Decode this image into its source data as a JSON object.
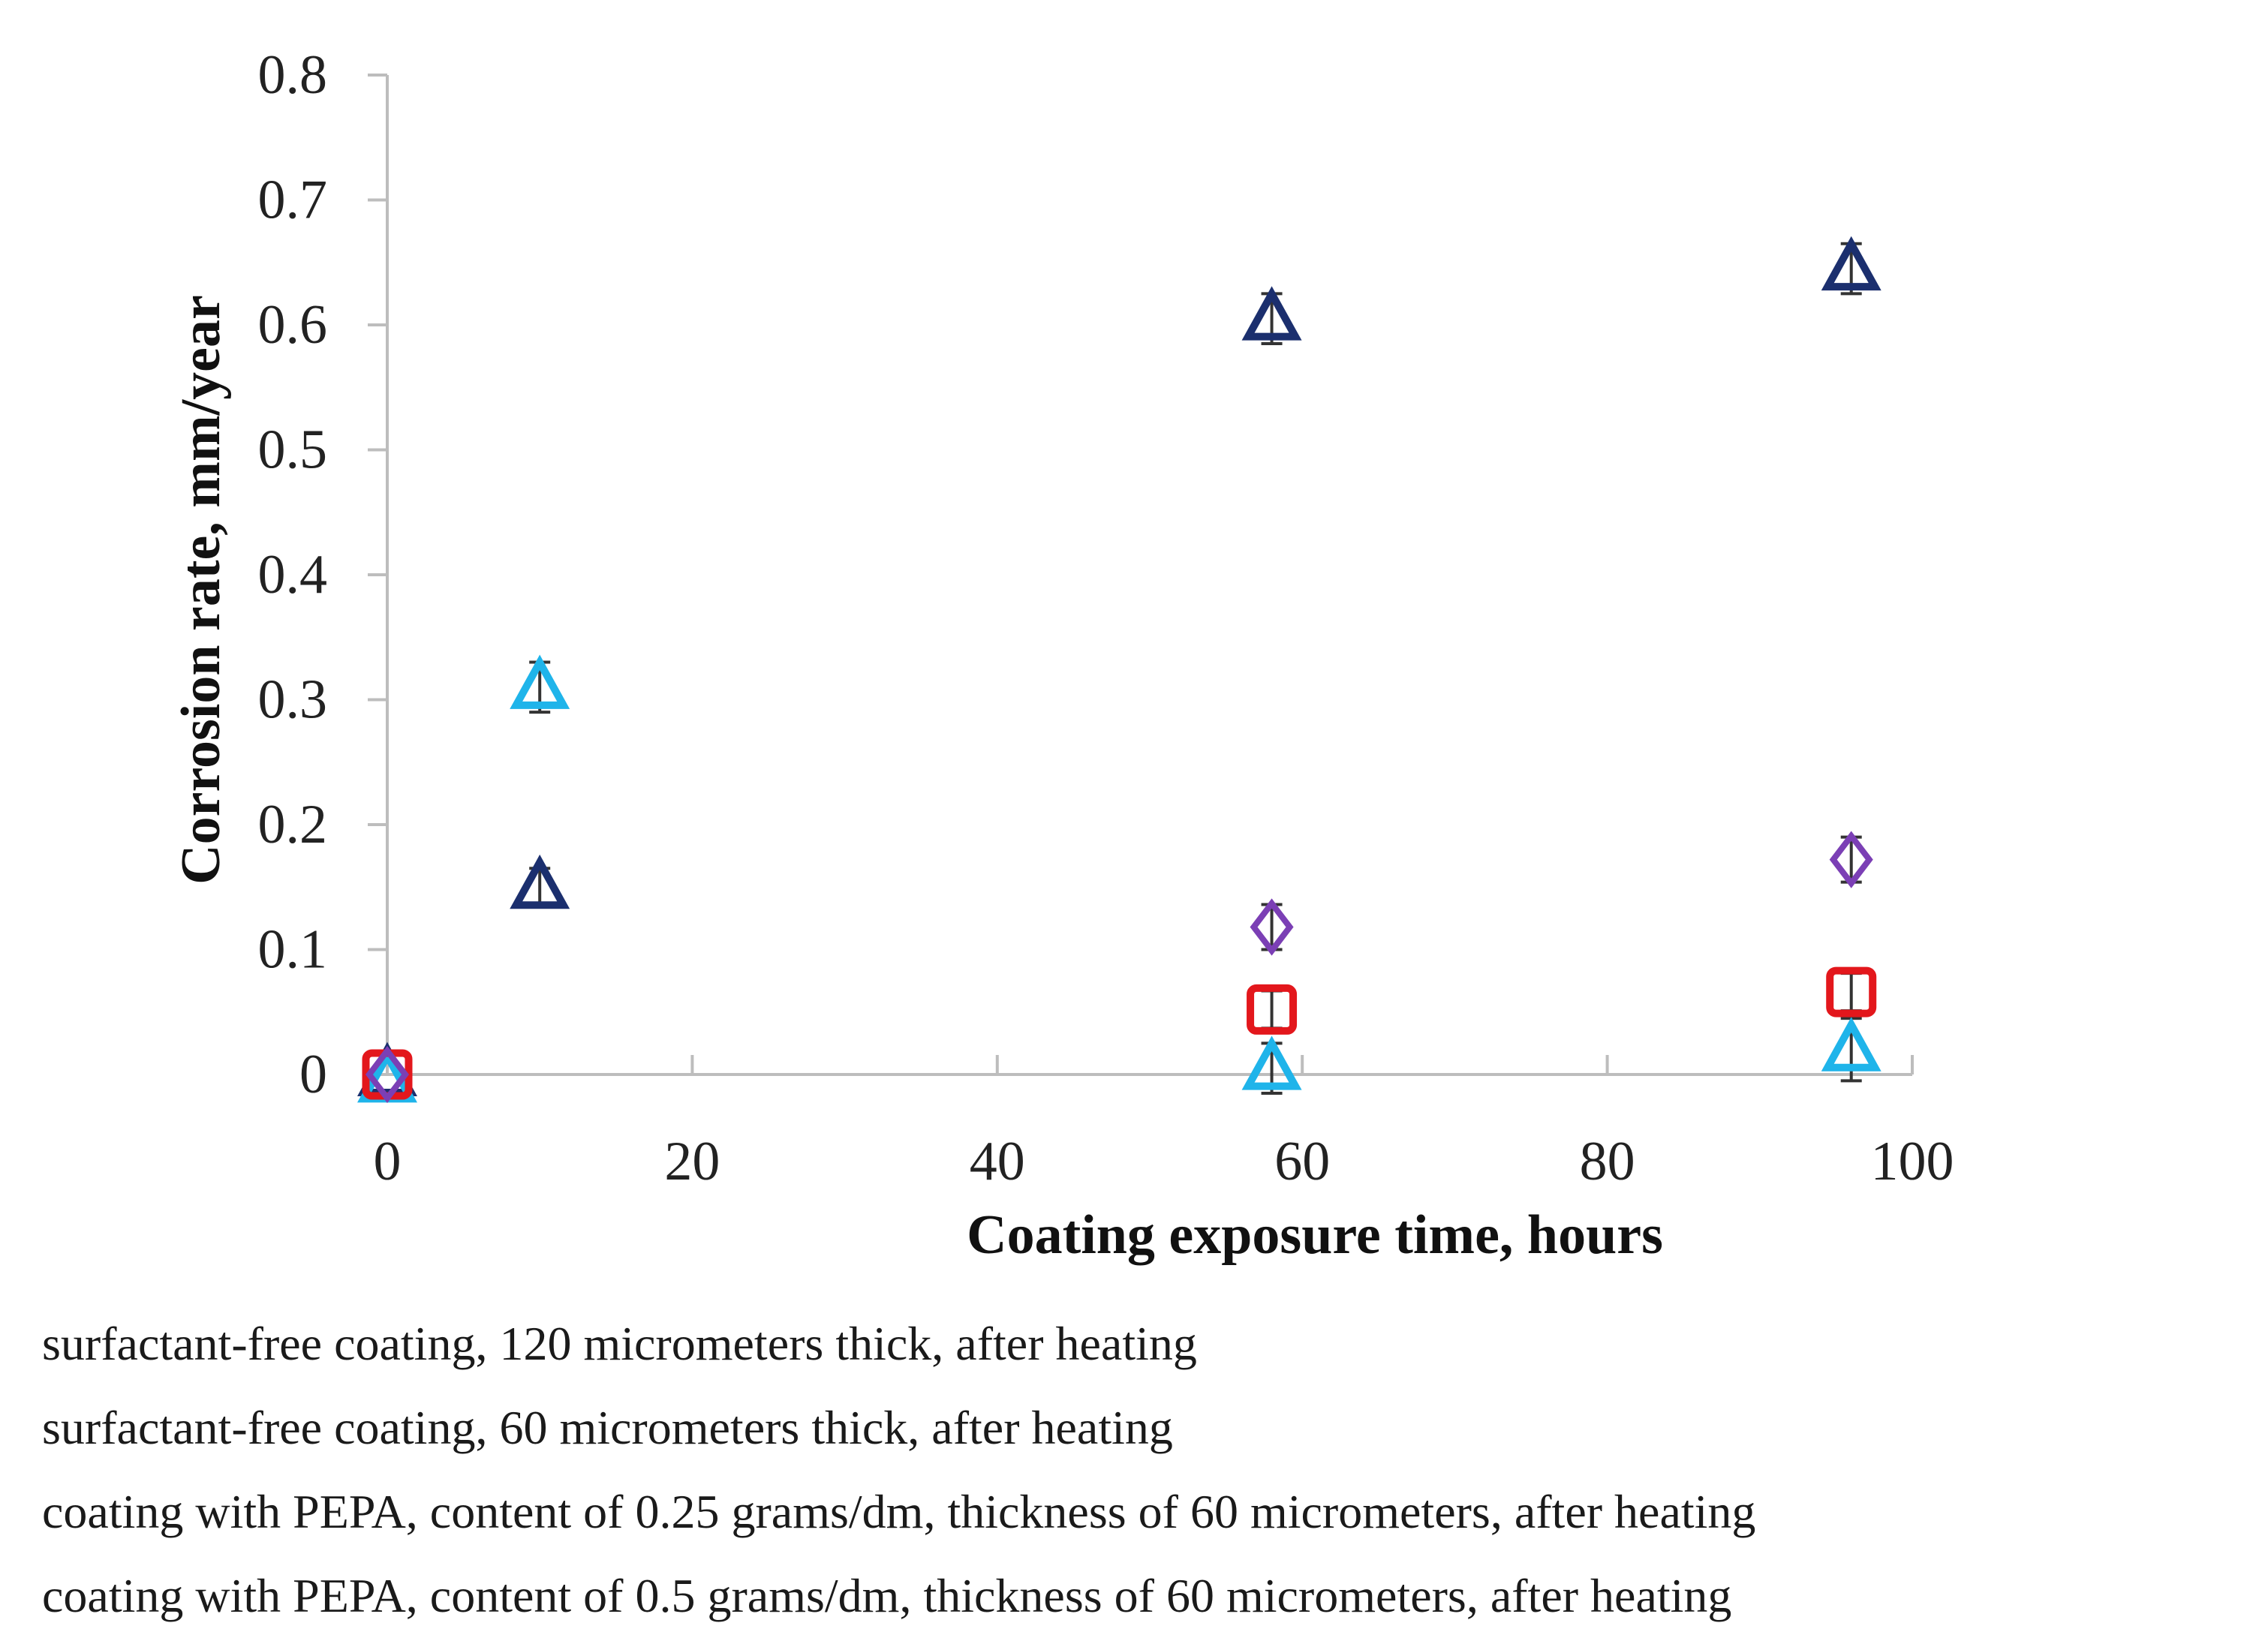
{
  "chart_data": {
    "type": "scatter",
    "title": "",
    "xlabel": "Coating exposure time, hours",
    "ylabel": "Corrosion rate, mm/year",
    "xlim": [
      0,
      100
    ],
    "ylim": [
      0,
      0.8
    ],
    "xticks": [
      0,
      20,
      40,
      60,
      80,
      100
    ],
    "yticks": [
      0,
      0.1,
      0.2,
      0.3,
      0.4,
      0.5,
      0.6,
      0.7,
      0.8
    ],
    "xtick_labels": [
      "0",
      "20",
      "40",
      "60",
      "80",
      "100"
    ],
    "ytick_labels": [
      "0",
      "0.1",
      "0.2",
      "0.3",
      "0.4",
      "0.5",
      "0.6",
      "0.7",
      "0.8"
    ],
    "grid": false,
    "legend_position": "bottom",
    "series": [
      {
        "name": "surfactant-free coating, 120 micrometers thick, after heating",
        "marker": "triangle",
        "color": "#1b2f6e",
        "x": [
          0,
          10,
          58,
          96
        ],
        "y": [
          0.0,
          0.15,
          0.605,
          0.645
        ],
        "err": [
          0.0,
          0.015,
          0.02,
          0.02
        ]
      },
      {
        "name": "surfactant-free coating, 60 micrometers thick, after heating",
        "marker": "triangle",
        "color": "#1fb4ea",
        "x": [
          0,
          10,
          58,
          96
        ],
        "y": [
          -0.005,
          0.31,
          0.005,
          0.02
        ],
        "err": [
          0.0,
          0.02,
          0.02,
          0.025
        ]
      },
      {
        "name": "coating with PEPA, content of 0.25 grams/dm, thickness of 60 micrometers, after heating",
        "marker": "square",
        "color": "#e3171c",
        "x": [
          0,
          58,
          96
        ],
        "y": [
          0.0,
          0.052,
          0.066
        ],
        "err": [
          0.0,
          0.015,
          0.015
        ]
      },
      {
        "name": "coating with PEPA, content of 0.5 grams/dm, thickness of 60 micrometers, after heating",
        "marker": "diamond",
        "color": "#7b3fb5",
        "x": [
          0,
          58,
          96
        ],
        "y": [
          0.0,
          0.118,
          0.172
        ],
        "err": [
          0.0,
          0.018,
          0.018
        ]
      }
    ]
  }
}
